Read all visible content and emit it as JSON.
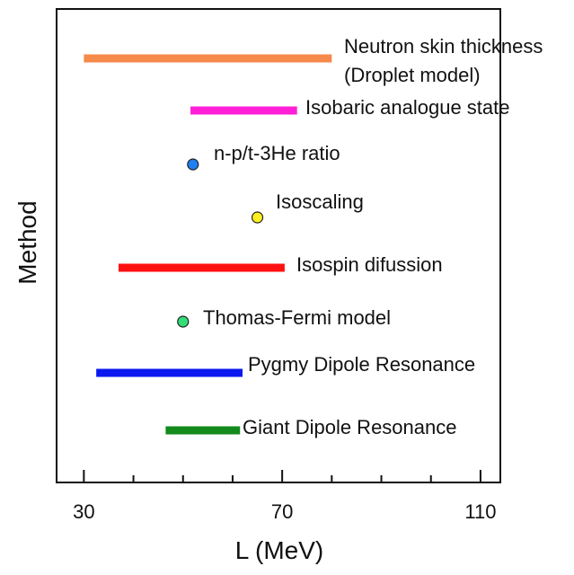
{
  "chart_data": {
    "type": "range",
    "xlabel": "L (MeV)",
    "ylabel": "Method",
    "xlim": [
      24.5,
      114
    ],
    "xticks": [
      30,
      70,
      110
    ],
    "x_minor_step": 10,
    "grid": false,
    "items": [
      {
        "label": "Neutron skin thickness",
        "label2": "(Droplet model)",
        "kind": "range",
        "low": 30,
        "high": 80,
        "color": "#f58a4b"
      },
      {
        "label": "Isobaric analogue state",
        "kind": "range",
        "low": 51.5,
        "high": 73,
        "color": "#ff1fd6"
      },
      {
        "label": "n-p/t-3He ratio",
        "kind": "point",
        "value": 52,
        "color": "#1e7ff0"
      },
      {
        "label": "Isoscaling",
        "kind": "point",
        "value": 65,
        "color": "#ffee22"
      },
      {
        "label": "Isospin difussion",
        "kind": "range",
        "low": 37,
        "high": 70.5,
        "color": "#ff1010"
      },
      {
        "label": "Thomas-Fermi model",
        "kind": "point",
        "value": 50,
        "color": "#33dd77"
      },
      {
        "label": "Pygmy Dipole Resonance",
        "kind": "range",
        "low": 32.5,
        "high": 62,
        "color": "#0b19f0"
      },
      {
        "label": "Giant Dipole Resonance",
        "kind": "range",
        "low": 46.5,
        "high": 61.5,
        "color": "#138a1c"
      }
    ]
  }
}
